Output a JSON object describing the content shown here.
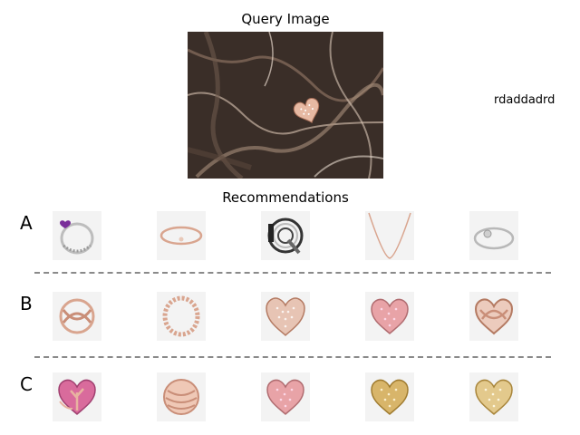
{
  "query": {
    "title": "Query Image"
  },
  "side_note": "rdaddadrd",
  "recommendations": {
    "title": "Recommendations",
    "rows": [
      {
        "label": "A",
        "items": [
          "ring-with-purple-heart-icon",
          "bangle-bracelet-icon",
          "letter-q-charm-icon",
          "chain-necklace-icon",
          "snake-chain-bracelet-icon"
        ]
      },
      {
        "label": "B",
        "items": [
          "infinity-knot-charm-icon",
          "twisted-ring-icon",
          "pave-heart-charm-icon",
          "pink-pave-heart-charm-icon",
          "entwined-heart-charm-icon"
        ]
      },
      {
        "label": "C",
        "items": [
          "pink-tree-heart-charm-icon",
          "rose-gold-round-charm-icon",
          "pink-pave-heart-charm-icon",
          "gold-pave-heart-charm-icon",
          "gold-pave-heart-charm-icon"
        ]
      }
    ]
  },
  "colors": {
    "rose_gold": "#d9a58f",
    "pink_pave": "#e8a3a7",
    "gold": "#d8b56a",
    "silver": "#b8b8b8",
    "marble_dark": "#3a2e28"
  }
}
